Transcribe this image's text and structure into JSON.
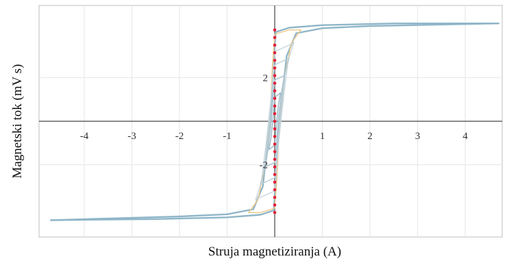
{
  "chart_data": {
    "type": "line",
    "title": "",
    "xlabel": "Struja magnetiziranja (A)",
    "ylabel": "Magnetski tok (mV s)",
    "xlim": [
      -4.8,
      4.7
    ],
    "ylim": [
      -4.6,
      4.6
    ],
    "grid": true,
    "x_ticks": [
      -4,
      -3,
      -2,
      -1,
      1,
      2,
      3,
      4
    ],
    "x_tick_labels": [
      "-4",
      "-3",
      "-2",
      "-1",
      "1",
      "2",
      "3",
      "4"
    ],
    "y_ticks": [
      2,
      -2
    ],
    "y_tick_labels": [
      "2",
      "-2"
    ],
    "series": [
      {
        "color": "#8fb6c8",
        "values": [
          {
            "branch": "descending",
            "points": [
              [
                4.7,
                4.5
              ],
              [
                2.0,
                4.38
              ],
              [
                1.0,
                4.28
              ],
              [
                0.45,
                4.05
              ],
              [
                0.25,
                3.0
              ],
              [
                0.15,
                1.0
              ],
              [
                0.1,
                0.0
              ],
              [
                0.05,
                -1.5
              ],
              [
                0.0,
                -3.5
              ],
              [
                -0.02,
                -4.1
              ],
              [
                -0.3,
                -4.3
              ],
              [
                -1.0,
                -4.42
              ],
              [
                -2.5,
                -4.5
              ],
              [
                -4.7,
                -4.55
              ]
            ]
          },
          {
            "branch": "ascending",
            "points": [
              [
                -4.7,
                -4.55
              ],
              [
                -2.0,
                -4.38
              ],
              [
                -1.0,
                -4.28
              ],
              [
                -0.45,
                -4.05
              ],
              [
                -0.25,
                -3.0
              ],
              [
                -0.15,
                -1.0
              ],
              [
                -0.1,
                0.0
              ],
              [
                -0.05,
                1.5
              ],
              [
                0.0,
                3.5
              ],
              [
                0.02,
                4.1
              ],
              [
                0.3,
                4.3
              ],
              [
                1.0,
                4.42
              ],
              [
                2.5,
                4.5
              ],
              [
                4.7,
                4.5
              ]
            ]
          }
        ]
      },
      {
        "color": "#f0c88a",
        "values": [
          {
            "branch": "descending",
            "points": [
              [
                0.55,
                4.2
              ],
              [
                0.35,
                3.6
              ],
              [
                0.2,
                2.0
              ],
              [
                0.1,
                0.0
              ],
              [
                0.05,
                -2.5
              ],
              [
                0.0,
                -4.0
              ],
              [
                -0.3,
                -4.2
              ],
              [
                -0.55,
                -4.2
              ]
            ]
          },
          {
            "branch": "ascending",
            "points": [
              [
                -0.55,
                -4.2
              ],
              [
                -0.35,
                -3.6
              ],
              [
                -0.2,
                -2.0
              ],
              [
                -0.1,
                0.0
              ],
              [
                -0.05,
                2.5
              ],
              [
                0.0,
                4.0
              ],
              [
                0.3,
                4.2
              ],
              [
                0.55,
                4.2
              ]
            ]
          }
        ]
      },
      {
        "color": "#c8d6de",
        "values": [
          {
            "branch": "descending",
            "points": [
              [
                0.4,
                3.6
              ],
              [
                0.28,
                2.8
              ],
              [
                0.18,
                1.0
              ],
              [
                0.08,
                -1.0
              ],
              [
                0.0,
                -3.2
              ],
              [
                -0.4,
                -3.6
              ]
            ]
          },
          {
            "branch": "ascending",
            "points": [
              [
                -0.4,
                -3.6
              ],
              [
                -0.28,
                -2.8
              ],
              [
                -0.18,
                -1.0
              ],
              [
                -0.08,
                1.0
              ],
              [
                0.0,
                3.2
              ],
              [
                0.4,
                3.6
              ]
            ]
          }
        ]
      },
      {
        "color": "#b9cdd8",
        "values": [
          {
            "branch": "descending",
            "points": [
              [
                0.3,
                2.9
              ],
              [
                0.2,
                2.0
              ],
              [
                0.12,
                0.5
              ],
              [
                0.05,
                -1.5
              ],
              [
                0.0,
                -2.6
              ],
              [
                -0.3,
                -2.9
              ]
            ]
          },
          {
            "branch": "ascending",
            "points": [
              [
                -0.3,
                -2.9
              ],
              [
                -0.2,
                -2.0
              ],
              [
                -0.12,
                -0.5
              ],
              [
                -0.05,
                1.5
              ],
              [
                0.0,
                2.6
              ],
              [
                0.3,
                2.9
              ]
            ]
          }
        ]
      },
      {
        "color": "#a9c2cf",
        "values": [
          {
            "branch": "descending",
            "points": [
              [
                0.2,
                2.1
              ],
              [
                0.14,
                1.3
              ],
              [
                0.08,
                0.2
              ],
              [
                0.03,
                -1.2
              ],
              [
                0.0,
                -1.9
              ],
              [
                -0.2,
                -2.1
              ]
            ]
          },
          {
            "branch": "ascending",
            "points": [
              [
                -0.2,
                -2.1
              ],
              [
                -0.14,
                -1.3
              ],
              [
                -0.08,
                -0.2
              ],
              [
                -0.03,
                1.2
              ],
              [
                0.0,
                1.9
              ],
              [
                0.2,
                2.1
              ]
            ]
          }
        ]
      },
      {
        "color": "#9ab7c6",
        "values": [
          {
            "branch": "descending",
            "points": [
              [
                0.12,
                1.3
              ],
              [
                0.08,
                0.8
              ],
              [
                0.04,
                0.0
              ],
              [
                0.0,
                -1.1
              ],
              [
                -0.12,
                -1.3
              ]
            ]
          },
          {
            "branch": "ascending",
            "points": [
              [
                -0.12,
                -1.3
              ],
              [
                -0.08,
                -0.8
              ],
              [
                -0.04,
                0.0
              ],
              [
                0.0,
                1.1
              ],
              [
                0.12,
                1.3
              ]
            ]
          }
        ]
      }
    ],
    "markers": {
      "color": "#e0203a",
      "x": 0.0,
      "y": [
        4.2,
        3.85,
        3.5,
        3.15,
        2.8,
        2.45,
        2.1,
        1.75,
        1.4,
        1.05,
        0.7,
        0.35,
        0.0,
        -0.35,
        -0.7,
        -1.05,
        -1.4,
        -1.75,
        -2.1,
        -2.45,
        -2.8,
        -3.15,
        -3.5,
        -3.85,
        -4.2
      ]
    }
  }
}
